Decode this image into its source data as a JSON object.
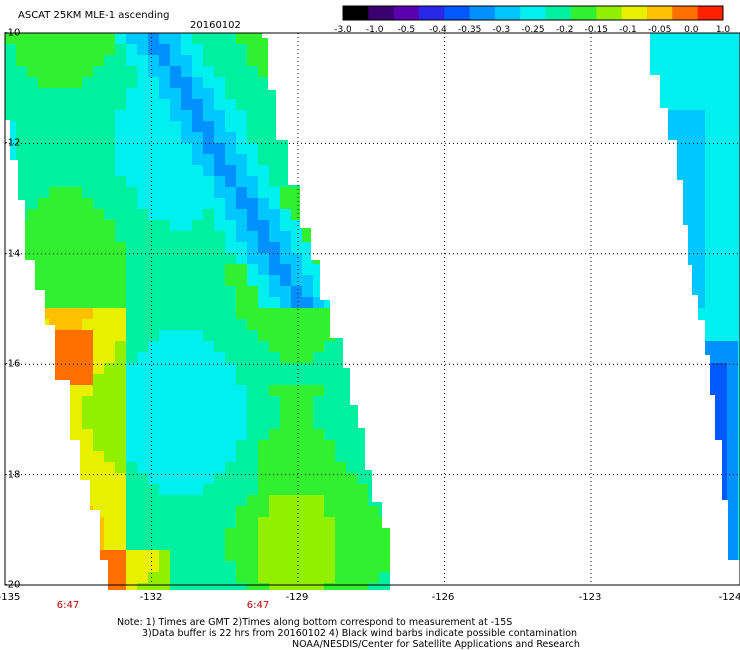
{
  "header": {
    "title": "ASCAT 25KM MLE-1 ascending",
    "date": "20160102"
  },
  "colorbar": {
    "labels": [
      "-3.0",
      "-1.0",
      "-0.5",
      "-0.4",
      "-0.35",
      "-0.3",
      "-0.25",
      "-0.2",
      "-0.15",
      "-0.1",
      "-0.05",
      "0.0",
      "1.0"
    ],
    "colors": [
      "#000000",
      "#3a0070",
      "#5a00b0",
      "#2a28e8",
      "#0058ff",
      "#0090ff",
      "#00c8ff",
      "#00f0f0",
      "#00f0a0",
      "#30f030",
      "#90f000",
      "#e8f000",
      "#ffc000",
      "#ff7000",
      "#ff2000"
    ]
  },
  "map": {
    "lat_range": [
      -20,
      -10
    ],
    "lon_range": [
      -135,
      -124
    ],
    "y_ticks": [
      "-10",
      "-12",
      "-14",
      "-16",
      "-18",
      "-20"
    ],
    "x_ticks": [
      "-135",
      "-132",
      "-129",
      "-126",
      "-123",
      "-124"
    ],
    "time_labels": [
      "6:47",
      "6:47"
    ],
    "grid": "dotted"
  },
  "notes": {
    "line1": "Note: 1) Times are GMT 2)Times along bottom correspond to measurement at -15S",
    "line2": "3)Data buffer is 22 hrs from 20160102 4) Black wind barbs indicate possible contamination",
    "line3": "NOAA/NESDIS/Center for Satellite Applications and Research"
  }
}
